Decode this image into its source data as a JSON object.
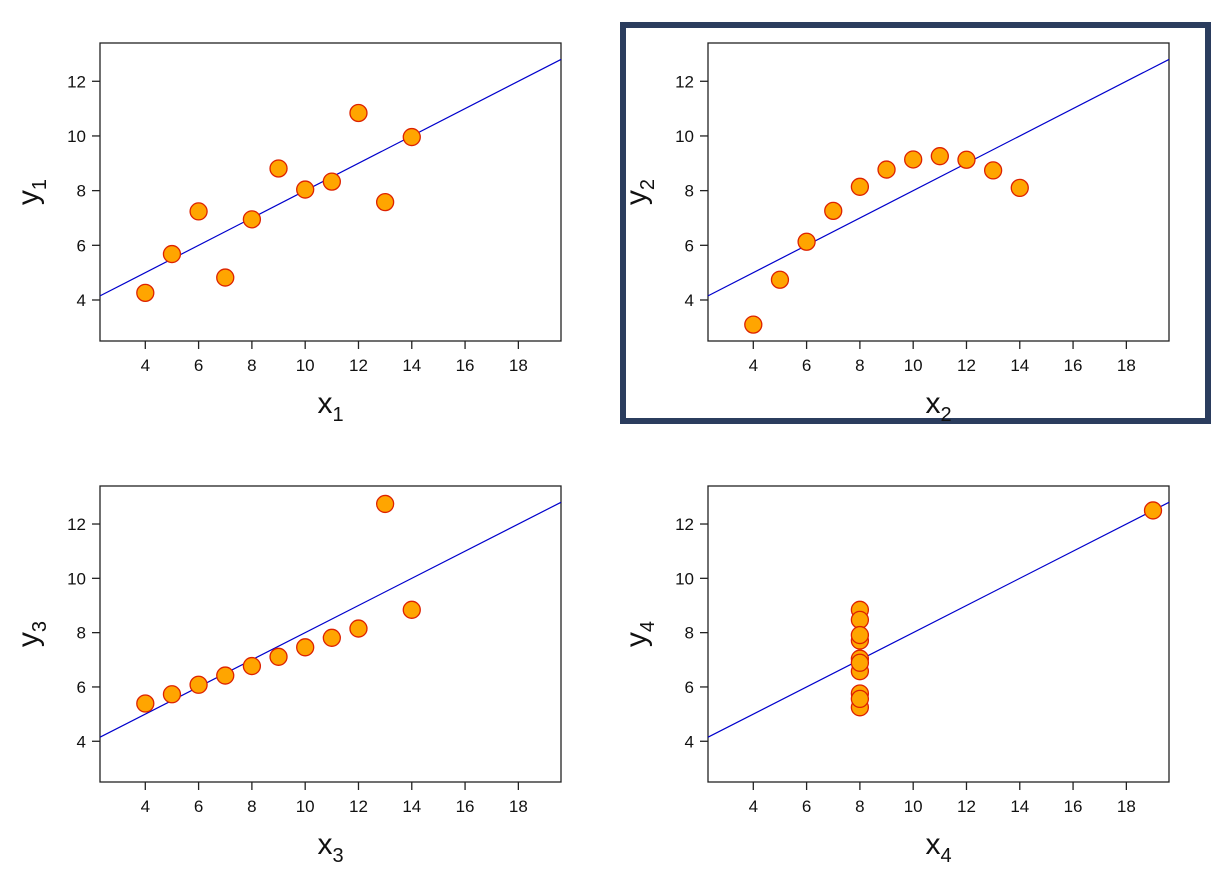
{
  "highlight_color": "#2b3d5e",
  "point_fill": "#ffa500",
  "point_stroke": "#dd2200",
  "line_color": "#0000cc",
  "highlighted_panel": 2,
  "chart_data": [
    {
      "type": "scatter",
      "xlabel": "x",
      "xlabel_sub": "1",
      "ylabel": "y",
      "ylabel_sub": "1",
      "x": [
        10,
        8,
        13,
        9,
        11,
        14,
        6,
        4,
        12,
        7,
        5
      ],
      "y": [
        8.04,
        6.95,
        7.58,
        8.81,
        8.33,
        9.96,
        7.24,
        4.26,
        10.84,
        4.82,
        5.68
      ],
      "fit_line": {
        "intercept": 3,
        "slope": 0.5
      },
      "xlim": [
        2.3,
        19.6
      ],
      "ylim": [
        2.5,
        13.4
      ],
      "xticks": [
        4,
        6,
        8,
        10,
        12,
        14,
        16,
        18
      ],
      "yticks": [
        4,
        6,
        8,
        10,
        12
      ],
      "grid": false
    },
    {
      "type": "scatter",
      "xlabel": "x",
      "xlabel_sub": "2",
      "ylabel": "y",
      "ylabel_sub": "2",
      "x": [
        10,
        8,
        13,
        9,
        11,
        14,
        6,
        4,
        12,
        7,
        5
      ],
      "y": [
        9.14,
        8.14,
        8.74,
        8.77,
        9.26,
        8.1,
        6.13,
        3.1,
        9.13,
        7.26,
        4.74
      ],
      "fit_line": {
        "intercept": 3,
        "slope": 0.5
      },
      "xlim": [
        2.3,
        19.6
      ],
      "ylim": [
        2.5,
        13.4
      ],
      "xticks": [
        4,
        6,
        8,
        10,
        12,
        14,
        16,
        18
      ],
      "yticks": [
        4,
        6,
        8,
        10,
        12
      ],
      "grid": false
    },
    {
      "type": "scatter",
      "xlabel": "x",
      "xlabel_sub": "3",
      "ylabel": "y",
      "ylabel_sub": "3",
      "x": [
        10,
        8,
        13,
        9,
        11,
        14,
        6,
        4,
        12,
        7,
        5
      ],
      "y": [
        7.46,
        6.77,
        12.74,
        7.11,
        7.81,
        8.84,
        6.08,
        5.39,
        8.15,
        6.42,
        5.73
      ],
      "fit_line": {
        "intercept": 3,
        "slope": 0.5
      },
      "xlim": [
        2.3,
        19.6
      ],
      "ylim": [
        2.5,
        13.4
      ],
      "xticks": [
        4,
        6,
        8,
        10,
        12,
        14,
        16,
        18
      ],
      "yticks": [
        4,
        6,
        8,
        10,
        12
      ],
      "grid": false
    },
    {
      "type": "scatter",
      "xlabel": "x",
      "xlabel_sub": "4",
      "ylabel": "y",
      "ylabel_sub": "4",
      "x": [
        8,
        8,
        8,
        8,
        8,
        8,
        8,
        19,
        8,
        8,
        8
      ],
      "y": [
        6.58,
        5.76,
        7.71,
        8.84,
        8.47,
        7.04,
        5.25,
        12.5,
        5.56,
        7.91,
        6.89
      ],
      "fit_line": {
        "intercept": 3,
        "slope": 0.5
      },
      "xlim": [
        2.3,
        19.6
      ],
      "ylim": [
        2.5,
        13.4
      ],
      "xticks": [
        4,
        6,
        8,
        10,
        12,
        14,
        16,
        18
      ],
      "yticks": [
        4,
        6,
        8,
        10,
        12
      ],
      "grid": false
    }
  ]
}
